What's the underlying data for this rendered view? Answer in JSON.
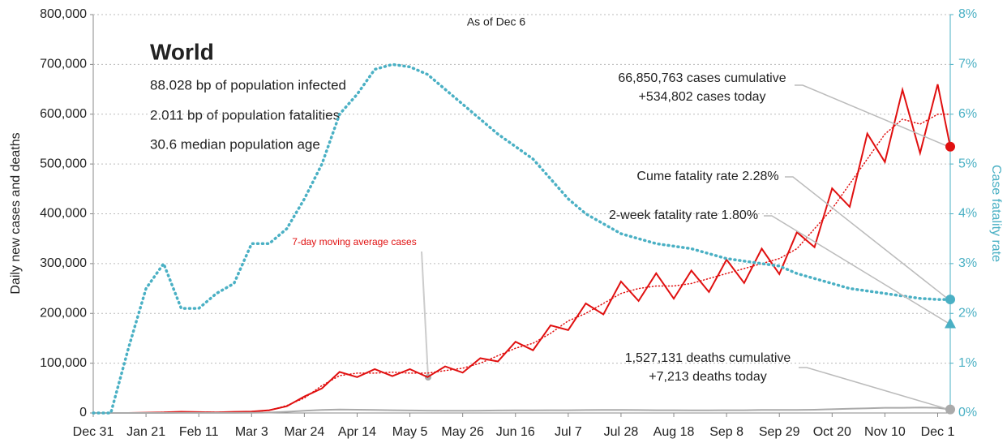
{
  "chart_data": {
    "type": "line",
    "subtitle": "As of Dec 6",
    "panel": {
      "title": "World",
      "lines": [
        "88.028 bp of population infected",
        "2.011 bp of population fatalities",
        "30.6 median population age"
      ]
    },
    "ylabel": "Daily new cases and deaths",
    "y2label": "Case fatality rate",
    "x": [
      0,
      7,
      14,
      21,
      28,
      35,
      42,
      49,
      56,
      63,
      70,
      77,
      84,
      91,
      98,
      105,
      112,
      119,
      126,
      133,
      140,
      147,
      154,
      161,
      168,
      175,
      182,
      189,
      196,
      203,
      210,
      217,
      224,
      231,
      238,
      245,
      252,
      259,
      266,
      273,
      280,
      287,
      294,
      301,
      308,
      315,
      322,
      329,
      336,
      341
    ],
    "xlim": [
      0,
      341
    ],
    "xticks": [
      {
        "value": 0,
        "label": "Dec 31"
      },
      {
        "value": 21,
        "label": "Jan 21"
      },
      {
        "value": 42,
        "label": "Feb 11"
      },
      {
        "value": 63,
        "label": "Mar 3"
      },
      {
        "value": 84,
        "label": "Mar 24"
      },
      {
        "value": 105,
        "label": "Apr 14"
      },
      {
        "value": 126,
        "label": "May 5"
      },
      {
        "value": 147,
        "label": "May 26"
      },
      {
        "value": 168,
        "label": "Jun 16"
      },
      {
        "value": 189,
        "label": "Jul 7"
      },
      {
        "value": 210,
        "label": "Jul 28"
      },
      {
        "value": 231,
        "label": "Aug 18"
      },
      {
        "value": 252,
        "label": "Sep 8"
      },
      {
        "value": 273,
        "label": "Sep 29"
      },
      {
        "value": 294,
        "label": "Oct 20"
      },
      {
        "value": 315,
        "label": "Nov 10"
      },
      {
        "value": 336,
        "label": "Dec 1"
      }
    ],
    "ylim": [
      0,
      800000
    ],
    "yticks": [
      0,
      {
        "value": 100000,
        "label": "100,000"
      },
      {
        "value": 200000,
        "label": "200,000"
      },
      {
        "value": 300000,
        "label": "300,000"
      },
      {
        "value": 400000,
        "label": "400,000"
      },
      {
        "value": 500000,
        "label": "500,000"
      },
      {
        "value": 600000,
        "label": "600,000"
      },
      {
        "value": 700000,
        "label": "700,000"
      },
      {
        "value": 800000,
        "label": "800,000"
      }
    ],
    "y2lim": [
      0,
      8
    ],
    "y2ticks": [
      {
        "value": 0,
        "label": "0%"
      },
      {
        "value": 1,
        "label": "1%"
      },
      {
        "value": 2,
        "label": "2%"
      },
      {
        "value": 3,
        "label": "3%"
      },
      {
        "value": 4,
        "label": "4%"
      },
      {
        "value": 5,
        "label": "5%"
      },
      {
        "value": 6,
        "label": "6%"
      },
      {
        "value": 7,
        "label": "7%"
      },
      {
        "value": 8,
        "label": "8%"
      }
    ],
    "grid": true,
    "series": [
      {
        "color": "#e01010",
        "style": "solid",
        "values": [
          0,
          0,
          0,
          600,
          1200,
          2500,
          1800,
          1200,
          2200,
          2700,
          5500,
          13500,
          33000,
          49500,
          82500,
          72000,
          88000,
          74000,
          88000,
          72000,
          93500,
          81000,
          110000,
          103500,
          143000,
          126000,
          176000,
          166500,
          220000,
          198000,
          264000,
          225000,
          280500,
          229500,
          286000,
          243000,
          308000,
          261000,
          330000,
          279000,
          363000,
          333000,
          451000,
          414000,
          561000,
          504000,
          649000,
          522000,
          660000,
          534802
        ]
      },
      {
        "name": "7-day moving average cases",
        "color": "#e01010",
        "style": "dotted",
        "values": [
          0,
          0,
          0,
          500,
          1500,
          2000,
          2000,
          1500,
          2000,
          3000,
          5000,
          15000,
          30000,
          55000,
          75000,
          80000,
          80000,
          82000,
          80000,
          80000,
          85000,
          90000,
          100000,
          115000,
          130000,
          140000,
          160000,
          185000,
          200000,
          220000,
          240000,
          250000,
          255000,
          255000,
          260000,
          270000,
          280000,
          290000,
          300000,
          310000,
          330000,
          370000,
          410000,
          460000,
          510000,
          560000,
          590000,
          580000,
          600000,
          600000
        ]
      },
      {
        "color": "#aaaaaa",
        "style": "solid",
        "values": [
          0,
          0,
          0,
          0,
          0,
          100,
          100,
          100,
          100,
          300,
          800,
          2500,
          4500,
          6000,
          7000,
          6500,
          6000,
          5500,
          5000,
          4800,
          4500,
          4500,
          4800,
          5000,
          5200,
          5300,
          5500,
          5500,
          5800,
          6000,
          6000,
          5800,
          5600,
          5500,
          5400,
          5400,
          5500,
          5600,
          6000,
          6000,
          6200,
          6500,
          7500,
          8500,
          9500,
          10500,
          10500,
          11000,
          10500,
          7213
        ]
      },
      {
        "color": "#4ab0c4",
        "style": "dotted",
        "axis": "y2",
        "values": [
          0,
          0,
          1.3,
          2.5,
          3.0,
          2.1,
          2.1,
          2.4,
          2.6,
          3.4,
          3.4,
          3.7,
          4.3,
          5.0,
          6.0,
          6.4,
          6.9,
          7.0,
          6.95,
          6.8,
          6.5,
          6.2,
          5.9,
          5.6,
          5.35,
          5.1,
          4.7,
          4.3,
          4.0,
          3.8,
          3.6,
          3.5,
          3.4,
          3.35,
          3.3,
          3.2,
          3.1,
          3.05,
          3.0,
          2.95,
          2.8,
          2.7,
          2.6,
          2.5,
          2.45,
          2.4,
          2.35,
          2.3,
          2.28,
          2.28
        ]
      }
    ],
    "markers": [
      {
        "lines": [
          "66,850,763 cases cumulative",
          "+534,802 cases today"
        ],
        "value": 534802,
        "shape": "circle",
        "color": "#e01010"
      },
      {
        "lines": [
          "Cume fatality rate 2.28%"
        ],
        "value": 2.28,
        "axis": "y2",
        "shape": "circle",
        "color": "#4ab0c4"
      },
      {
        "lines": [
          "2-week fatality rate 1.80%"
        ],
        "value": 1.8,
        "axis": "y2",
        "shape": "triangle",
        "color": "#4ab0c4"
      },
      {
        "lines": [
          "1,527,131 deaths cumulative",
          "+7,213 deaths today"
        ],
        "value": 7213,
        "shape": "circle",
        "color": "#aaaaaa"
      }
    ]
  }
}
